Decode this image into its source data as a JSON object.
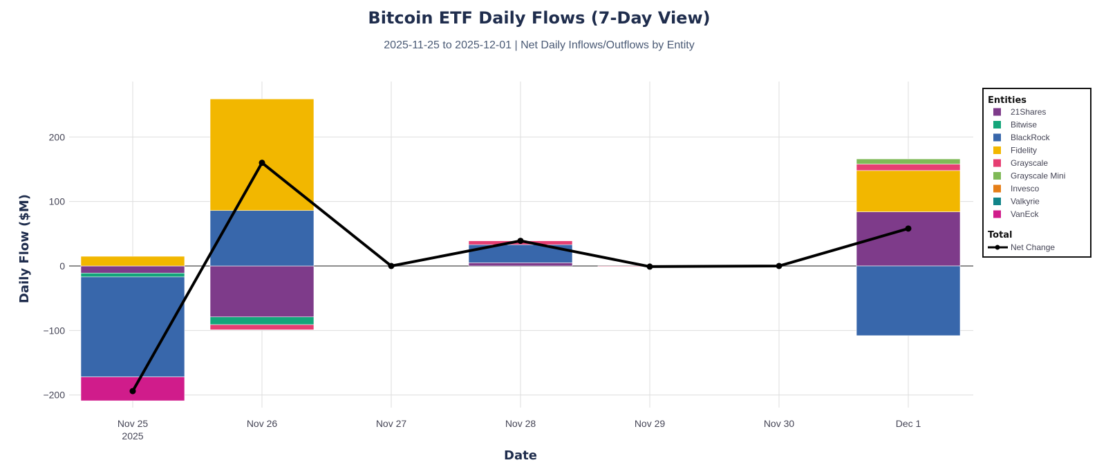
{
  "chart_data": {
    "type": "bar",
    "title": "Bitcoin ETF Daily Flows (7-Day View)",
    "subtitle": "2025-11-25 to 2025-12-01 | Net Daily Inflows/Outflows by Entity",
    "xlabel": "Date",
    "ylabel": "Daily Flow ($M)",
    "categories": [
      "Nov 25",
      "Nov 26",
      "Nov 27",
      "Nov 28",
      "Nov 29",
      "Nov 30",
      "Dec 1"
    ],
    "x_year_label": "2025",
    "ylim": [
      -215,
      285
    ],
    "yticks": [
      -200,
      -100,
      0,
      100,
      200
    ],
    "ytick_labels": [
      "−200",
      "−100",
      "0",
      "100",
      "200"
    ],
    "grid": true,
    "barmode": "relative",
    "legend_title": "Entities",
    "legend_total_title": "Total",
    "legend_position": "right",
    "series": [
      {
        "name": "21Shares",
        "color": "#7e3b8a",
        "values": [
          -11,
          -79,
          0,
          5,
          0,
          0,
          84
        ]
      },
      {
        "name": "Bitwise",
        "color": "#14a57a",
        "values": [
          -6,
          -12,
          0,
          0,
          0,
          0,
          0
        ]
      },
      {
        "name": "BlackRock",
        "color": "#3867ab",
        "values": [
          -155,
          86,
          0,
          28,
          0,
          0,
          -108
        ]
      },
      {
        "name": "Fidelity",
        "color": "#f2b700",
        "values": [
          15,
          173,
          0,
          0,
          0,
          0,
          64
        ]
      },
      {
        "name": "Grayscale",
        "color": "#e63e72",
        "values": [
          0,
          -8,
          0,
          6,
          -1,
          0,
          10
        ]
      },
      {
        "name": "Grayscale Mini",
        "color": "#7fb957",
        "values": [
          0,
          0,
          0,
          0,
          0,
          0,
          8
        ]
      },
      {
        "name": "Invesco",
        "color": "#e57e17",
        "values": [
          0,
          0,
          0,
          0,
          0,
          0,
          0
        ]
      },
      {
        "name": "Valkyrie",
        "color": "#118489",
        "values": [
          0,
          0,
          0,
          0,
          0,
          0,
          0
        ]
      },
      {
        "name": "VanEck",
        "color": "#d01c8b",
        "values": [
          -37,
          0,
          0,
          0,
          0,
          0,
          0
        ]
      }
    ],
    "line": {
      "name": "Net Change",
      "color": "#000000",
      "values": [
        -194,
        160,
        0,
        39,
        -1,
        0,
        58
      ]
    }
  }
}
